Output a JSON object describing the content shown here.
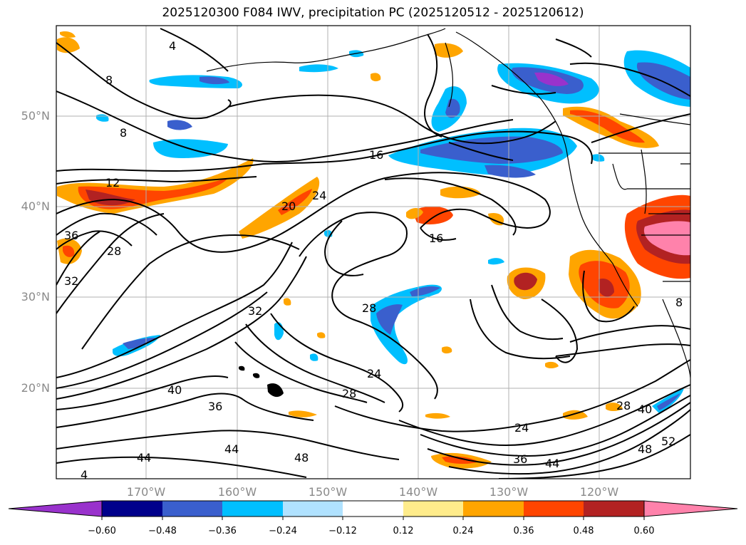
{
  "title": "2025120300 F084 IWV, precipitation PC (2025120512 - 2025120612)",
  "map": {
    "lat_labels": [
      "50°N",
      "40°N",
      "30°N",
      "20°N"
    ],
    "lon_labels": [
      "170°W",
      "160°W",
      "150°W",
      "140°W",
      "130°W",
      "120°W"
    ],
    "contour_labels": [
      "4",
      "8",
      "8",
      "12",
      "16",
      "16",
      "20",
      "24",
      "24",
      "24",
      "28",
      "28",
      "28",
      "28",
      "32",
      "32",
      "36",
      "36",
      "36",
      "40",
      "40",
      "44",
      "44",
      "44",
      "48",
      "48",
      "52",
      "4",
      "8"
    ]
  },
  "colorbar": {
    "colors": [
      "#9932cc",
      "#00008b",
      "#3a5fcd",
      "#00bfff",
      "#b0e2ff",
      "#ffffff",
      "#ffec8b",
      "#ffa500",
      "#ff4500",
      "#b22222",
      "#ff82ab"
    ],
    "tick_labels": [
      "−0.60",
      "−0.48",
      "−0.36",
      "−0.24",
      "−0.12",
      "0.12",
      "0.24",
      "0.36",
      "0.48",
      "0.60"
    ]
  },
  "colors": {
    "grid": "#b0b0b0",
    "contour": "#000000",
    "axis_label": "#8a8a8a"
  }
}
